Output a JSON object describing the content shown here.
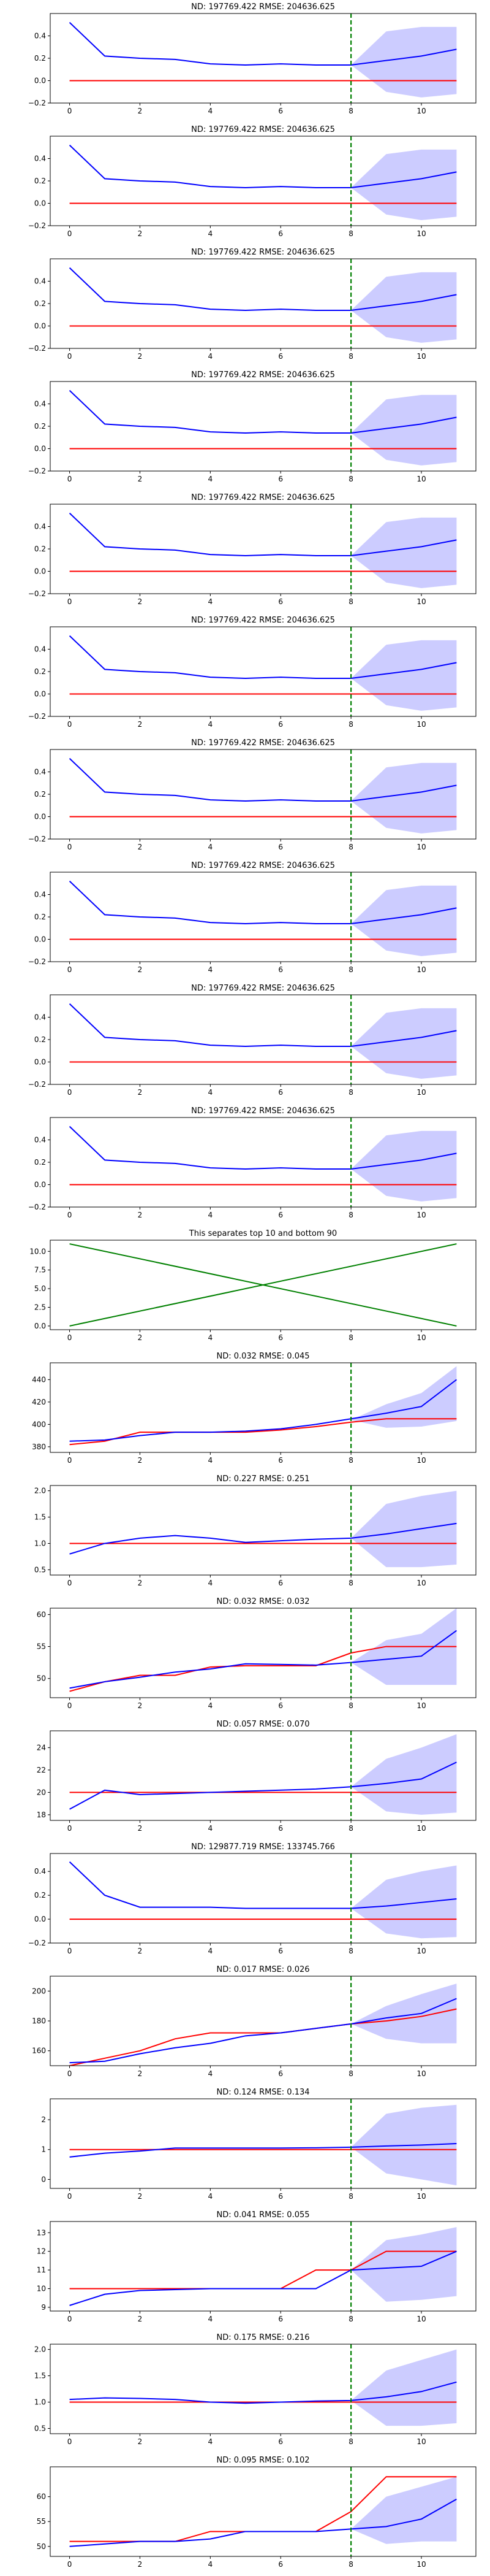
{
  "chart_data": [
    {
      "type": "line",
      "title": "ND:  197769.422 RMSE:  204636.625",
      "xlim": [
        -0.55,
        11.55
      ],
      "ylim": [
        -0.2,
        0.6
      ],
      "xticks": [
        0,
        2,
        4,
        6,
        8,
        10
      ],
      "yticks": [
        -0.2,
        0.0,
        0.2,
        0.4
      ],
      "vline": 8,
      "pred": [
        0.52,
        0.22,
        0.2,
        0.19,
        0.15,
        0.14,
        0.15,
        0.14,
        0.14,
        0.18,
        0.22,
        0.28
      ],
      "truth": [
        0,
        0,
        0,
        0,
        0,
        0,
        0,
        0,
        0,
        0,
        0,
        0
      ],
      "band_low": [
        0.14,
        -0.1,
        -0.15,
        -0.12
      ],
      "band_high": [
        0.14,
        0.44,
        0.48,
        0.48
      ]
    },
    {
      "type": "line",
      "title": "ND:  197769.422 RMSE:  204636.625",
      "xlim": [
        -0.55,
        11.55
      ],
      "ylim": [
        -0.2,
        0.6
      ],
      "xticks": [
        0,
        2,
        4,
        6,
        8,
        10
      ],
      "yticks": [
        -0.2,
        0.0,
        0.2,
        0.4
      ],
      "vline": 8,
      "pred": [
        0.52,
        0.22,
        0.2,
        0.19,
        0.15,
        0.14,
        0.15,
        0.14,
        0.14,
        0.18,
        0.22,
        0.28
      ],
      "truth": [
        0,
        0,
        0,
        0,
        0,
        0,
        0,
        0,
        0,
        0,
        0,
        0
      ],
      "band_low": [
        0.14,
        -0.1,
        -0.15,
        -0.12
      ],
      "band_high": [
        0.14,
        0.44,
        0.48,
        0.48
      ]
    },
    {
      "type": "line",
      "title": "ND:  197769.422 RMSE:  204636.625",
      "xlim": [
        -0.55,
        11.55
      ],
      "ylim": [
        -0.2,
        0.6
      ],
      "xticks": [
        0,
        2,
        4,
        6,
        8,
        10
      ],
      "yticks": [
        -0.2,
        0.0,
        0.2,
        0.4
      ],
      "vline": 8,
      "pred": [
        0.52,
        0.22,
        0.2,
        0.19,
        0.15,
        0.14,
        0.15,
        0.14,
        0.14,
        0.18,
        0.22,
        0.28
      ],
      "truth": [
        0,
        0,
        0,
        0,
        0,
        0,
        0,
        0,
        0,
        0,
        0,
        0
      ],
      "band_low": [
        0.14,
        -0.1,
        -0.15,
        -0.12
      ],
      "band_high": [
        0.14,
        0.44,
        0.48,
        0.48
      ]
    },
    {
      "type": "line",
      "title": "ND:  197769.422 RMSE:  204636.625",
      "xlim": [
        -0.55,
        11.55
      ],
      "ylim": [
        -0.2,
        0.6
      ],
      "xticks": [
        0,
        2,
        4,
        6,
        8,
        10
      ],
      "yticks": [
        -0.2,
        0.0,
        0.2,
        0.4
      ],
      "vline": 8,
      "pred": [
        0.52,
        0.22,
        0.2,
        0.19,
        0.15,
        0.14,
        0.15,
        0.14,
        0.14,
        0.18,
        0.22,
        0.28
      ],
      "truth": [
        0,
        0,
        0,
        0,
        0,
        0,
        0,
        0,
        0,
        0,
        0,
        0
      ],
      "band_low": [
        0.14,
        -0.1,
        -0.15,
        -0.12
      ],
      "band_high": [
        0.14,
        0.44,
        0.48,
        0.48
      ]
    },
    {
      "type": "line",
      "title": "ND:  197769.422 RMSE:  204636.625",
      "xlim": [
        -0.55,
        11.55
      ],
      "ylim": [
        -0.2,
        0.6
      ],
      "xticks": [
        0,
        2,
        4,
        6,
        8,
        10
      ],
      "yticks": [
        -0.2,
        0.0,
        0.2,
        0.4
      ],
      "vline": 8,
      "pred": [
        0.52,
        0.22,
        0.2,
        0.19,
        0.15,
        0.14,
        0.15,
        0.14,
        0.14,
        0.18,
        0.22,
        0.28
      ],
      "truth": [
        0,
        0,
        0,
        0,
        0,
        0,
        0,
        0,
        0,
        0,
        0,
        0
      ],
      "band_low": [
        0.14,
        -0.1,
        -0.15,
        -0.12
      ],
      "band_high": [
        0.14,
        0.44,
        0.48,
        0.48
      ]
    },
    {
      "type": "line",
      "title": "ND:  197769.422 RMSE:  204636.625",
      "xlim": [
        -0.55,
        11.55
      ],
      "ylim": [
        -0.2,
        0.6
      ],
      "xticks": [
        0,
        2,
        4,
        6,
        8,
        10
      ],
      "yticks": [
        -0.2,
        0.0,
        0.2,
        0.4
      ],
      "vline": 8,
      "pred": [
        0.52,
        0.22,
        0.2,
        0.19,
        0.15,
        0.14,
        0.15,
        0.14,
        0.14,
        0.18,
        0.22,
        0.28
      ],
      "truth": [
        0,
        0,
        0,
        0,
        0,
        0,
        0,
        0,
        0,
        0,
        0,
        0
      ],
      "band_low": [
        0.14,
        -0.1,
        -0.15,
        -0.12
      ],
      "band_high": [
        0.14,
        0.44,
        0.48,
        0.48
      ]
    },
    {
      "type": "line",
      "title": "ND:  197769.422 RMSE:  204636.625",
      "xlim": [
        -0.55,
        11.55
      ],
      "ylim": [
        -0.2,
        0.6
      ],
      "xticks": [
        0,
        2,
        4,
        6,
        8,
        10
      ],
      "yticks": [
        -0.2,
        0.0,
        0.2,
        0.4
      ],
      "vline": 8,
      "pred": [
        0.52,
        0.22,
        0.2,
        0.19,
        0.15,
        0.14,
        0.15,
        0.14,
        0.14,
        0.18,
        0.22,
        0.28
      ],
      "truth": [
        0,
        0,
        0,
        0,
        0,
        0,
        0,
        0,
        0,
        0,
        0,
        0
      ],
      "band_low": [
        0.14,
        -0.1,
        -0.15,
        -0.12
      ],
      "band_high": [
        0.14,
        0.44,
        0.48,
        0.48
      ]
    },
    {
      "type": "line",
      "title": "ND:  197769.422 RMSE:  204636.625",
      "xlim": [
        -0.55,
        11.55
      ],
      "ylim": [
        -0.2,
        0.6
      ],
      "xticks": [
        0,
        2,
        4,
        6,
        8,
        10
      ],
      "yticks": [
        -0.2,
        0.0,
        0.2,
        0.4
      ],
      "vline": 8,
      "pred": [
        0.52,
        0.22,
        0.2,
        0.19,
        0.15,
        0.14,
        0.15,
        0.14,
        0.14,
        0.18,
        0.22,
        0.28
      ],
      "truth": [
        0,
        0,
        0,
        0,
        0,
        0,
        0,
        0,
        0,
        0,
        0,
        0
      ],
      "band_low": [
        0.14,
        -0.1,
        -0.15,
        -0.12
      ],
      "band_high": [
        0.14,
        0.44,
        0.48,
        0.48
      ]
    },
    {
      "type": "line",
      "title": "ND:  197769.422 RMSE:  204636.625",
      "xlim": [
        -0.55,
        11.55
      ],
      "ylim": [
        -0.2,
        0.6
      ],
      "xticks": [
        0,
        2,
        4,
        6,
        8,
        10
      ],
      "yticks": [
        -0.2,
        0.0,
        0.2,
        0.4
      ],
      "vline": 8,
      "pred": [
        0.52,
        0.22,
        0.2,
        0.19,
        0.15,
        0.14,
        0.15,
        0.14,
        0.14,
        0.18,
        0.22,
        0.28
      ],
      "truth": [
        0,
        0,
        0,
        0,
        0,
        0,
        0,
        0,
        0,
        0,
        0,
        0
      ],
      "band_low": [
        0.14,
        -0.1,
        -0.15,
        -0.12
      ],
      "band_high": [
        0.14,
        0.44,
        0.48,
        0.48
      ]
    },
    {
      "type": "line",
      "title": "ND:  197769.422 RMSE:  204636.625",
      "xlim": [
        -0.55,
        11.55
      ],
      "ylim": [
        -0.2,
        0.6
      ],
      "xticks": [
        0,
        2,
        4,
        6,
        8,
        10
      ],
      "yticks": [
        -0.2,
        0.0,
        0.2,
        0.4
      ],
      "vline": 8,
      "pred": [
        0.52,
        0.22,
        0.2,
        0.19,
        0.15,
        0.14,
        0.15,
        0.14,
        0.14,
        0.18,
        0.22,
        0.28
      ],
      "truth": [
        0,
        0,
        0,
        0,
        0,
        0,
        0,
        0,
        0,
        0,
        0,
        0
      ],
      "band_low": [
        0.14,
        -0.1,
        -0.15,
        -0.12
      ],
      "band_high": [
        0.14,
        0.44,
        0.48,
        0.48
      ]
    },
    {
      "type": "line",
      "title": "This separates top 10 and bottom 90",
      "xlim": [
        -0.55,
        11.55
      ],
      "ylim": [
        -0.5,
        11.5
      ],
      "xticks": [
        0,
        2,
        4,
        6,
        8,
        10
      ],
      "yticks": [
        0.0,
        2.5,
        5.0,
        7.5,
        10.0
      ],
      "yfmt": 1,
      "vline": null,
      "green_lines": [
        {
          "x": [
            0,
            11
          ],
          "y": [
            0,
            11
          ]
        },
        {
          "x": [
            0,
            11
          ],
          "y": [
            11,
            0
          ]
        }
      ]
    },
    {
      "type": "line",
      "title": "ND:  0.032 RMSE:  0.045",
      "xlim": [
        -0.55,
        11.55
      ],
      "ylim": [
        375,
        455
      ],
      "xticks": [
        0,
        2,
        4,
        6,
        8,
        10
      ],
      "yticks": [
        380,
        400,
        420,
        440
      ],
      "vline": 8,
      "pred": [
        385,
        386,
        390,
        393,
        393,
        394,
        396,
        400,
        405,
        410,
        416,
        440
      ],
      "truth": [
        382,
        385,
        393,
        393,
        393,
        393,
        395,
        398,
        402,
        405,
        405,
        405
      ],
      "band_low": [
        404,
        397,
        398,
        403
      ],
      "band_high": [
        404,
        418,
        428,
        452
      ]
    },
    {
      "type": "line",
      "title": "ND:  0.227 RMSE:  0.251",
      "xlim": [
        -0.55,
        11.55
      ],
      "ylim": [
        0.4,
        2.1
      ],
      "xticks": [
        0,
        2,
        4,
        6,
        8,
        10
      ],
      "yticks": [
        0.5,
        1.0,
        1.5,
        2.0
      ],
      "yfmt": 1,
      "vline": 8,
      "pred": [
        0.8,
        1.0,
        1.1,
        1.15,
        1.1,
        1.02,
        1.05,
        1.08,
        1.1,
        1.18,
        1.28,
        1.38
      ],
      "truth": [
        1,
        1,
        1,
        1,
        1,
        1,
        1,
        1,
        1,
        1,
        1,
        1
      ],
      "band_low": [
        1.1,
        0.55,
        0.55,
        0.6
      ],
      "band_high": [
        1.1,
        1.75,
        1.9,
        2.0
      ]
    },
    {
      "type": "line",
      "title": "ND:  0.032 RMSE:  0.032",
      "xlim": [
        -0.55,
        11.55
      ],
      "ylim": [
        47,
        61
      ],
      "xticks": [
        0,
        2,
        4,
        6,
        8,
        10
      ],
      "yticks": [
        50,
        55,
        60
      ],
      "vline": 8,
      "pred": [
        48.5,
        49.5,
        50.2,
        51,
        51.5,
        52.3,
        52.2,
        52.1,
        52.5,
        53,
        53.5,
        57.5
      ],
      "truth": [
        48,
        49.5,
        50.5,
        50.5,
        51.8,
        52,
        52,
        52,
        54,
        55,
        55,
        55
      ],
      "band_low": [
        52.5,
        49,
        49,
        49
      ],
      "band_high": [
        52.5,
        56,
        57,
        61
      ]
    },
    {
      "type": "line",
      "title": "ND:  0.057 RMSE:  0.070",
      "xlim": [
        -0.55,
        11.55
      ],
      "ylim": [
        17.5,
        25.5
      ],
      "xticks": [
        0,
        2,
        4,
        6,
        8,
        10
      ],
      "yticks": [
        18,
        20,
        22,
        24
      ],
      "vline": 8,
      "pred": [
        18.5,
        20.2,
        19.8,
        19.9,
        20,
        20.1,
        20.2,
        20.3,
        20.5,
        20.8,
        21.2,
        22.7
      ],
      "truth": [
        20,
        20,
        20,
        20,
        20,
        20,
        20,
        20,
        20,
        20,
        20,
        20
      ],
      "band_low": [
        20.5,
        18.3,
        18,
        18.2
      ],
      "band_high": [
        20.5,
        23,
        24,
        25.2
      ]
    },
    {
      "type": "line",
      "title": "ND:  129877.719 RMSE:  133745.766",
      "xlim": [
        -0.55,
        11.55
      ],
      "ylim": [
        -0.2,
        0.55
      ],
      "xticks": [
        0,
        2,
        4,
        6,
        8,
        10
      ],
      "yticks": [
        -0.2,
        0.0,
        0.2,
        0.4
      ],
      "vline": 8,
      "pred": [
        0.48,
        0.2,
        0.1,
        0.1,
        0.1,
        0.09,
        0.09,
        0.09,
        0.09,
        0.11,
        0.14,
        0.17
      ],
      "truth": [
        0,
        0,
        0,
        0,
        0,
        0,
        0,
        0,
        0,
        0,
        0,
        0
      ],
      "band_low": [
        0.09,
        -0.12,
        -0.16,
        -0.15
      ],
      "band_high": [
        0.09,
        0.33,
        0.4,
        0.45
      ]
    },
    {
      "type": "line",
      "title": "ND:  0.017 RMSE:  0.026",
      "xlim": [
        -0.55,
        11.55
      ],
      "ylim": [
        150,
        210
      ],
      "xticks": [
        0,
        2,
        4,
        6,
        8,
        10
      ],
      "yticks": [
        160,
        180,
        200
      ],
      "vline": 8,
      "pred": [
        152,
        153,
        158,
        162,
        165,
        170,
        172,
        175,
        178,
        182,
        185,
        195
      ],
      "truth": [
        150,
        155,
        160,
        168,
        172,
        172,
        172,
        175,
        178,
        180,
        183,
        188
      ],
      "band_low": [
        178,
        168,
        165,
        165
      ],
      "band_high": [
        178,
        190,
        198,
        205
      ]
    },
    {
      "type": "line",
      "title": "ND:  0.124 RMSE:  0.134",
      "xlim": [
        -0.55,
        11.55
      ],
      "ylim": [
        -0.3,
        2.7
      ],
      "xticks": [
        0,
        2,
        4,
        6,
        8,
        10
      ],
      "yticks": [
        0,
        1,
        2
      ],
      "vline": 8,
      "pred": [
        0.75,
        0.88,
        0.95,
        1.05,
        1.05,
        1.05,
        1.05,
        1.06,
        1.08,
        1.12,
        1.15,
        1.2
      ],
      "truth": [
        1,
        1,
        1,
        1,
        1,
        1,
        1,
        1,
        1,
        1,
        1,
        1
      ],
      "band_low": [
        1.08,
        0.2,
        0.0,
        -0.2
      ],
      "band_high": [
        1.08,
        2.2,
        2.4,
        2.5
      ]
    },
    {
      "type": "line",
      "title": "ND:  0.041 RMSE:  0.055",
      "xlim": [
        -0.55,
        11.55
      ],
      "ylim": [
        8.8,
        13.6
      ],
      "xticks": [
        0,
        2,
        4,
        6,
        8,
        10
      ],
      "yticks": [
        9,
        10,
        11,
        12,
        13
      ],
      "vline": 8,
      "pred": [
        9.1,
        9.7,
        9.9,
        9.95,
        10,
        10,
        10,
        10,
        11,
        11.1,
        11.2,
        12
      ],
      "truth": [
        10,
        10,
        10,
        10,
        10,
        10,
        10,
        11,
        11,
        12,
        12,
        12
      ],
      "band_low": [
        11,
        9.3,
        9.4,
        9.6
      ],
      "band_high": [
        11,
        12.6,
        12.9,
        13.3
      ]
    },
    {
      "type": "line",
      "title": "ND:  0.175 RMSE:  0.216",
      "xlim": [
        -0.55,
        11.55
      ],
      "ylim": [
        0.4,
        2.1
      ],
      "xticks": [
        0,
        2,
        4,
        6,
        8,
        10
      ],
      "yticks": [
        0.5,
        1.0,
        1.5,
        2.0
      ],
      "yfmt": 1,
      "vline": 8,
      "pred": [
        1.05,
        1.08,
        1.07,
        1.05,
        1.0,
        0.98,
        1.0,
        1.02,
        1.03,
        1.1,
        1.2,
        1.38
      ],
      "truth": [
        1,
        1,
        1,
        1,
        1,
        1,
        1,
        1,
        1,
        1,
        1,
        1
      ],
      "band_low": [
        1.03,
        0.55,
        0.55,
        0.6
      ],
      "band_high": [
        1.03,
        1.6,
        1.8,
        2.0
      ]
    },
    {
      "type": "line",
      "title": "ND:  0.095 RMSE:  0.102",
      "xlim": [
        -0.55,
        11.55
      ],
      "ylim": [
        48,
        66
      ],
      "xticks": [
        0,
        2,
        4,
        6,
        8,
        10
      ],
      "yticks": [
        50,
        55,
        60
      ],
      "vline": 8,
      "pred": [
        50,
        50.5,
        51,
        51,
        51.5,
        53,
        53,
        53,
        53.5,
        54,
        55.5,
        59.5
      ],
      "truth": [
        51,
        51,
        51,
        51,
        53,
        53,
        53,
        53,
        57,
        64,
        64,
        64
      ],
      "band_low": [
        53.5,
        50.5,
        51,
        51
      ],
      "band_high": [
        53.5,
        60,
        62,
        64
      ]
    }
  ]
}
